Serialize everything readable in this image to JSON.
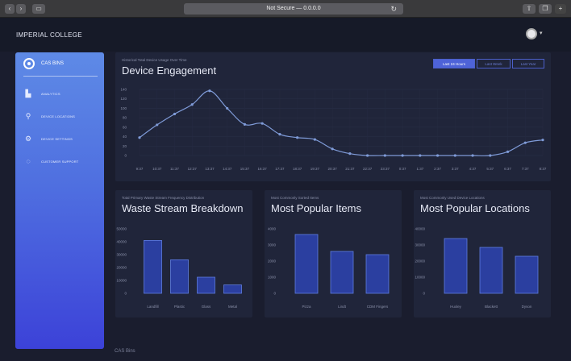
{
  "browser": {
    "url": "Not Secure — 0.0.0.0"
  },
  "header": {
    "brand": "IMPERIAL COLLEGE"
  },
  "sidebar": {
    "title": "CAS BINS",
    "items": [
      {
        "label": "ANALYTICS",
        "icon": "bar-chart-icon"
      },
      {
        "label": "DEVICE LOCATIONS",
        "icon": "location-icon"
      },
      {
        "label": "DEVICE SETTINGS",
        "icon": "gear-icon"
      },
      {
        "label": "CUSTOMER SUPPORT",
        "icon": "chat-icon"
      }
    ]
  },
  "engagement": {
    "subtitle": "Historical Total Device Usage Over Time",
    "title": "Device Engagement",
    "tabs": [
      "Last 24 Hours",
      "Last Week",
      "Last Year"
    ],
    "active_tab": 0
  },
  "waste": {
    "subtitle": "Total Primary Waste Stream Frequency Distribution",
    "title": "Waste Stream Breakdown"
  },
  "items": {
    "subtitle": "Most Commonly Sorted Items",
    "title": "Most Popular Items"
  },
  "locations": {
    "subtitle": "Most Commonly Used Device Locations",
    "title": "Most Popular Locations"
  },
  "footer": {
    "label": "CAS Bins"
  },
  "chart_data": [
    {
      "type": "line",
      "title": "Device Engagement",
      "x": [
        "9:37",
        "10:37",
        "11:37",
        "12:37",
        "13:37",
        "14:37",
        "15:37",
        "16:37",
        "17:37",
        "18:37",
        "19:37",
        "20:37",
        "21:37",
        "22:37",
        "23:37",
        "0:37",
        "1:37",
        "2:37",
        "3:37",
        "4:37",
        "5:37",
        "6:37",
        "7:37",
        "8:37"
      ],
      "values": [
        38,
        65,
        88,
        108,
        137,
        100,
        66,
        68,
        45,
        38,
        34,
        14,
        4,
        0,
        0,
        0,
        0,
        0,
        0,
        0,
        0,
        8,
        27,
        33
      ],
      "yticks": [
        0,
        20,
        40,
        60,
        80,
        100,
        120,
        140
      ],
      "ylim": [
        0,
        140
      ],
      "grid": true
    },
    {
      "type": "bar",
      "title": "Waste Stream Breakdown",
      "categories": [
        "Landfill",
        "Plastic",
        "Glass",
        "Metal"
      ],
      "values": [
        41000,
        26000,
        12500,
        6500
      ],
      "yticks": [
        0,
        10000,
        20000,
        30000,
        40000,
        50000
      ],
      "ylim": [
        0,
        50000
      ]
    },
    {
      "type": "bar",
      "title": "Most Popular Items",
      "categories": [
        "Pizza",
        "Lindt",
        "CDM Fingers"
      ],
      "values": [
        3650,
        2600,
        2400
      ],
      "yticks": [
        0,
        1000,
        2000,
        3000,
        4000
      ],
      "ylim": [
        0,
        4000
      ]
    },
    {
      "type": "bar",
      "title": "Most Popular Locations",
      "categories": [
        "Huxley",
        "Blackett",
        "Dyson"
      ],
      "values": [
        34000,
        28500,
        23000
      ],
      "yticks": [
        0,
        10000,
        20000,
        30000,
        40000
      ],
      "ylim": [
        0,
        40000
      ]
    }
  ],
  "colors": {
    "accent": "#4e63d8",
    "line": "#7f9bd8",
    "bar_fill": "#2b3fa0",
    "bar_stroke": "#5f7de0"
  }
}
